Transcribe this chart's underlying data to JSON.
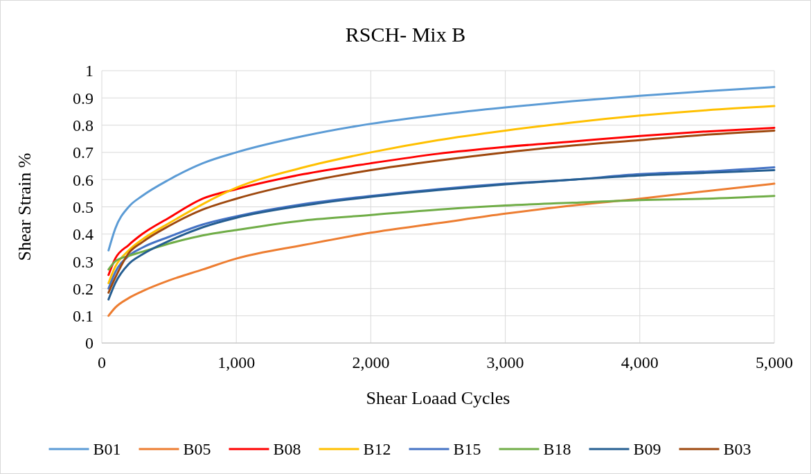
{
  "chart_data": {
    "type": "line",
    "title": "RSCH- Mix B",
    "xlabel": "Shear Loaad Cycles",
    "ylabel": "Shear Strain %",
    "x": [
      50,
      100,
      200,
      300,
      500,
      750,
      1000,
      1500,
      2000,
      2500,
      3000,
      3500,
      4000,
      4500,
      5000
    ],
    "series": [
      {
        "name": "B01",
        "color": "#5b9bd5",
        "values": [
          0.34,
          0.42,
          0.5,
          0.54,
          0.6,
          0.66,
          0.7,
          0.76,
          0.805,
          0.838,
          0.865,
          0.888,
          0.908,
          0.925,
          0.94
        ]
      },
      {
        "name": "B05",
        "color": "#ed7d31",
        "values": [
          0.1,
          0.13,
          0.165,
          0.19,
          0.23,
          0.27,
          0.31,
          0.36,
          0.405,
          0.44,
          0.475,
          0.505,
          0.53,
          0.558,
          0.585
        ]
      },
      {
        "name": "B08",
        "color": "#ff0000",
        "values": [
          0.25,
          0.31,
          0.36,
          0.4,
          0.46,
          0.53,
          0.565,
          0.62,
          0.66,
          0.695,
          0.72,
          0.74,
          0.76,
          0.777,
          0.79
        ]
      },
      {
        "name": "B12",
        "color": "#ffc000",
        "values": [
          0.22,
          0.28,
          0.34,
          0.38,
          0.44,
          0.51,
          0.57,
          0.645,
          0.7,
          0.745,
          0.78,
          0.81,
          0.835,
          0.855,
          0.87
        ]
      },
      {
        "name": "B15",
        "color": "#4472c4",
        "values": [
          0.2,
          0.26,
          0.32,
          0.35,
          0.39,
          0.435,
          0.465,
          0.51,
          0.54,
          0.565,
          0.585,
          0.6,
          0.62,
          0.63,
          0.645
        ]
      },
      {
        "name": "B18",
        "color": "#70ad47",
        "values": [
          0.27,
          0.3,
          0.32,
          0.335,
          0.365,
          0.395,
          0.415,
          0.45,
          0.47,
          0.49,
          0.505,
          0.515,
          0.525,
          0.53,
          0.54
        ]
      },
      {
        "name": "B09",
        "color": "#255e91",
        "values": [
          0.16,
          0.22,
          0.29,
          0.325,
          0.375,
          0.425,
          0.46,
          0.505,
          0.537,
          0.562,
          0.583,
          0.6,
          0.615,
          0.625,
          0.635
        ]
      },
      {
        "name": "B03",
        "color": "#9e480e",
        "values": [
          0.185,
          0.24,
          0.33,
          0.37,
          0.43,
          0.49,
          0.53,
          0.59,
          0.635,
          0.67,
          0.7,
          0.725,
          0.745,
          0.765,
          0.78
        ]
      }
    ],
    "xlim": [
      0,
      5000
    ],
    "xticks": [
      0,
      {
        "value": 1000,
        "label": "1,000"
      },
      {
        "value": 2000,
        "label": "2,000"
      },
      {
        "value": 3000,
        "label": "3,000"
      },
      {
        "value": 4000,
        "label": "4,000"
      },
      {
        "value": 5000,
        "label": "5,000"
      }
    ],
    "ylim": [
      0,
      1
    ],
    "yticks": [
      0,
      0.1,
      0.2,
      0.3,
      0.4,
      0.5,
      0.6,
      0.7,
      0.8,
      0.9,
      1
    ],
    "grid": true,
    "legend": "bottom",
    "marker": "none",
    "line_style": "solid"
  }
}
